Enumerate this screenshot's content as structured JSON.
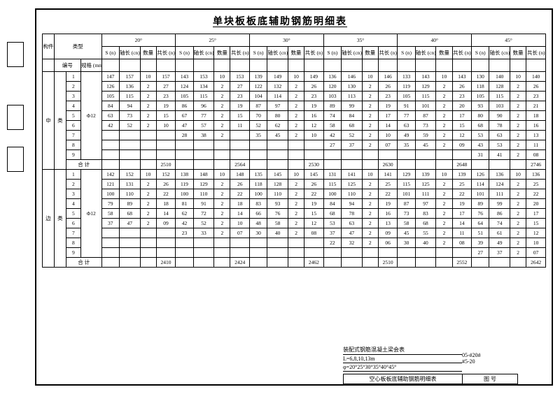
{
  "title": "单块板板底辅助钢筋明细表",
  "col_groups": [
    "20°",
    "25°",
    "30°",
    "35°",
    "40°",
    "45°"
  ],
  "sub_cols": [
    "S (n)",
    "轴长 (cn)",
    "数量",
    "共长 (n)"
  ],
  "left_headers": {
    "c1": "构件",
    "c2": "类型",
    "c3": "编号",
    "c4": "规格 (mm)"
  },
  "sections": [
    {
      "group": "中",
      "sub": "类",
      "spec": "Φ12",
      "rows": [
        {
          "n": "1",
          "v": [
            "147",
            "157",
            "10",
            "157",
            "143",
            "153",
            "10",
            "153",
            "139",
            "149",
            "10",
            "149",
            "136",
            "146",
            "10",
            "146",
            "133",
            "143",
            "10",
            "143",
            "130",
            "140",
            "10",
            "140"
          ]
        },
        {
          "n": "2",
          "v": [
            "126",
            "136",
            "2",
            "27",
            "124",
            "134",
            "2",
            "27",
            "122",
            "132",
            "2",
            "26",
            "120",
            "130",
            "2",
            "26",
            "119",
            "129",
            "2",
            "26",
            "118",
            "128",
            "2",
            "26"
          ]
        },
        {
          "n": "3",
          "v": [
            "105",
            "115",
            "2",
            "23",
            "105",
            "115",
            "2",
            "23",
            "104",
            "114",
            "2",
            "23",
            "103",
            "113",
            "2",
            "23",
            "105",
            "115",
            "2",
            "23",
            "105",
            "115",
            "2",
            "23"
          ]
        },
        {
          "n": "4",
          "v": [
            "84",
            "94",
            "2",
            "19",
            "86",
            "96",
            "2",
            "19",
            "87",
            "97",
            "2",
            "19",
            "89",
            "99",
            "2",
            "19",
            "91",
            "101",
            "2",
            "20",
            "93",
            "103",
            "2",
            "21"
          ]
        },
        {
          "n": "5",
          "v": [
            "63",
            "73",
            "2",
            "15",
            "67",
            "77",
            "2",
            "15",
            "70",
            "80",
            "2",
            "16",
            "74",
            "84",
            "2",
            "17",
            "77",
            "87",
            "2",
            "17",
            "80",
            "90",
            "2",
            "18"
          ]
        },
        {
          "n": "6",
          "v": [
            "42",
            "52",
            "2",
            "10",
            "47",
            "57",
            "2",
            "11",
            "52",
            "62",
            "2",
            "12",
            "58",
            "68",
            "2",
            "14",
            "63",
            "73",
            "2",
            "15",
            "68",
            "78",
            "2",
            "16"
          ]
        },
        {
          "n": "7",
          "v": [
            "",
            "",
            "",
            "",
            "28",
            "38",
            "2",
            "",
            "35",
            "45",
            "2",
            "10",
            "42",
            "52",
            "2",
            "10",
            "49",
            "59",
            "2",
            "12",
            "53",
            "63",
            "2",
            "13"
          ]
        },
        {
          "n": "8",
          "v": [
            "",
            "",
            "",
            "",
            "",
            "",
            "",
            "",
            "",
            "",
            "",
            "",
            "27",
            "37",
            "2",
            "07",
            "35",
            "45",
            "2",
            "09",
            "43",
            "53",
            "2",
            "11"
          ]
        },
        {
          "n": "9",
          "v": [
            "",
            "",
            "",
            "",
            "",
            "",
            "",
            "",
            "",
            "",
            "",
            "",
            "",
            "",
            "",
            "",
            "",
            "",
            "",
            "",
            "31",
            "41",
            "2",
            "08"
          ]
        }
      ],
      "sum": {
        "label": "合  计",
        "v": [
          "",
          "",
          "",
          "2510",
          "",
          "",
          "",
          "2564",
          "",
          "",
          "",
          "2530",
          "",
          "",
          "",
          "2630",
          "",
          "",
          "",
          "2648",
          "",
          "",
          "",
          "2746"
        ]
      }
    },
    {
      "group": "边",
      "sub": "类",
      "spec": "Φ12",
      "rows": [
        {
          "n": "1",
          "v": [
            "142",
            "152",
            "10",
            "152",
            "138",
            "148",
            "10",
            "148",
            "135",
            "145",
            "10",
            "145",
            "131",
            "141",
            "10",
            "141",
            "129",
            "139",
            "10",
            "139",
            "126",
            "136",
            "10",
            "136"
          ]
        },
        {
          "n": "2",
          "v": [
            "121",
            "131",
            "2",
            "26",
            "119",
            "129",
            "2",
            "26",
            "118",
            "128",
            "2",
            "26",
            "115",
            "125",
            "2",
            "25",
            "115",
            "125",
            "2",
            "25",
            "114",
            "124",
            "2",
            "25"
          ]
        },
        {
          "n": "3",
          "v": [
            "100",
            "110",
            "2",
            "22",
            "100",
            "110",
            "2",
            "22",
            "100",
            "110",
            "2",
            "22",
            "100",
            "110",
            "2",
            "22",
            "101",
            "111",
            "2",
            "22",
            "101",
            "111",
            "2",
            "22"
          ]
        },
        {
          "n": "4",
          "v": [
            "79",
            "89",
            "2",
            "18",
            "81",
            "91",
            "2",
            "18",
            "83",
            "93",
            "2",
            "19",
            "84",
            "94",
            "2",
            "19",
            "87",
            "97",
            "2",
            "19",
            "89",
            "99",
            "2",
            "20"
          ]
        },
        {
          "n": "5",
          "v": [
            "58",
            "68",
            "2",
            "14",
            "62",
            "72",
            "2",
            "14",
            "66",
            "76",
            "2",
            "15",
            "68",
            "78",
            "2",
            "16",
            "73",
            "83",
            "2",
            "17",
            "76",
            "86",
            "2",
            "17"
          ]
        },
        {
          "n": "6",
          "v": [
            "37",
            "47",
            "2",
            "09",
            "42",
            "52",
            "2",
            "10",
            "48",
            "58",
            "2",
            "12",
            "53",
            "63",
            "2",
            "13",
            "58",
            "68",
            "2",
            "14",
            "64",
            "74",
            "2",
            "15"
          ]
        },
        {
          "n": "7",
          "v": [
            "",
            "",
            "",
            "",
            "23",
            "33",
            "2",
            "07",
            "30",
            "40",
            "2",
            "08",
            "37",
            "47",
            "2",
            "09",
            "45",
            "55",
            "2",
            "11",
            "51",
            "61",
            "2",
            "12"
          ]
        },
        {
          "n": "8",
          "v": [
            "",
            "",
            "",
            "",
            "",
            "",
            "",
            "",
            "",
            "",
            "",
            "",
            "22",
            "32",
            "2",
            "06",
            "30",
            "40",
            "2",
            "08",
            "39",
            "49",
            "2",
            "10"
          ]
        },
        {
          "n": "9",
          "v": [
            "",
            "",
            "",
            "",
            "",
            "",
            "",
            "",
            "",
            "",
            "",
            "",
            "",
            "",
            "",
            "",
            "",
            "",
            "",
            "",
            "27",
            "37",
            "2",
            "07"
          ]
        }
      ],
      "sum": {
        "label": "合  计",
        "v": [
          "",
          "",
          "",
          "2410",
          "",
          "",
          "",
          "2424",
          "",
          "",
          "",
          "2462",
          "",
          "",
          "",
          "2510",
          "",
          "",
          "",
          "2552",
          "",
          "",
          "",
          "2642"
        ]
      }
    }
  ],
  "footer": {
    "l1": "装配式钢筋混凝土梁会表",
    "l2": "L=6,8,10,13m",
    "l3": "φ=20°25°30°35°40°45°",
    "l4": "空心板板底辅助钢筋明细表",
    "r1": "05-#20#",
    "r2": "#5-20",
    "r3": "图 号"
  }
}
